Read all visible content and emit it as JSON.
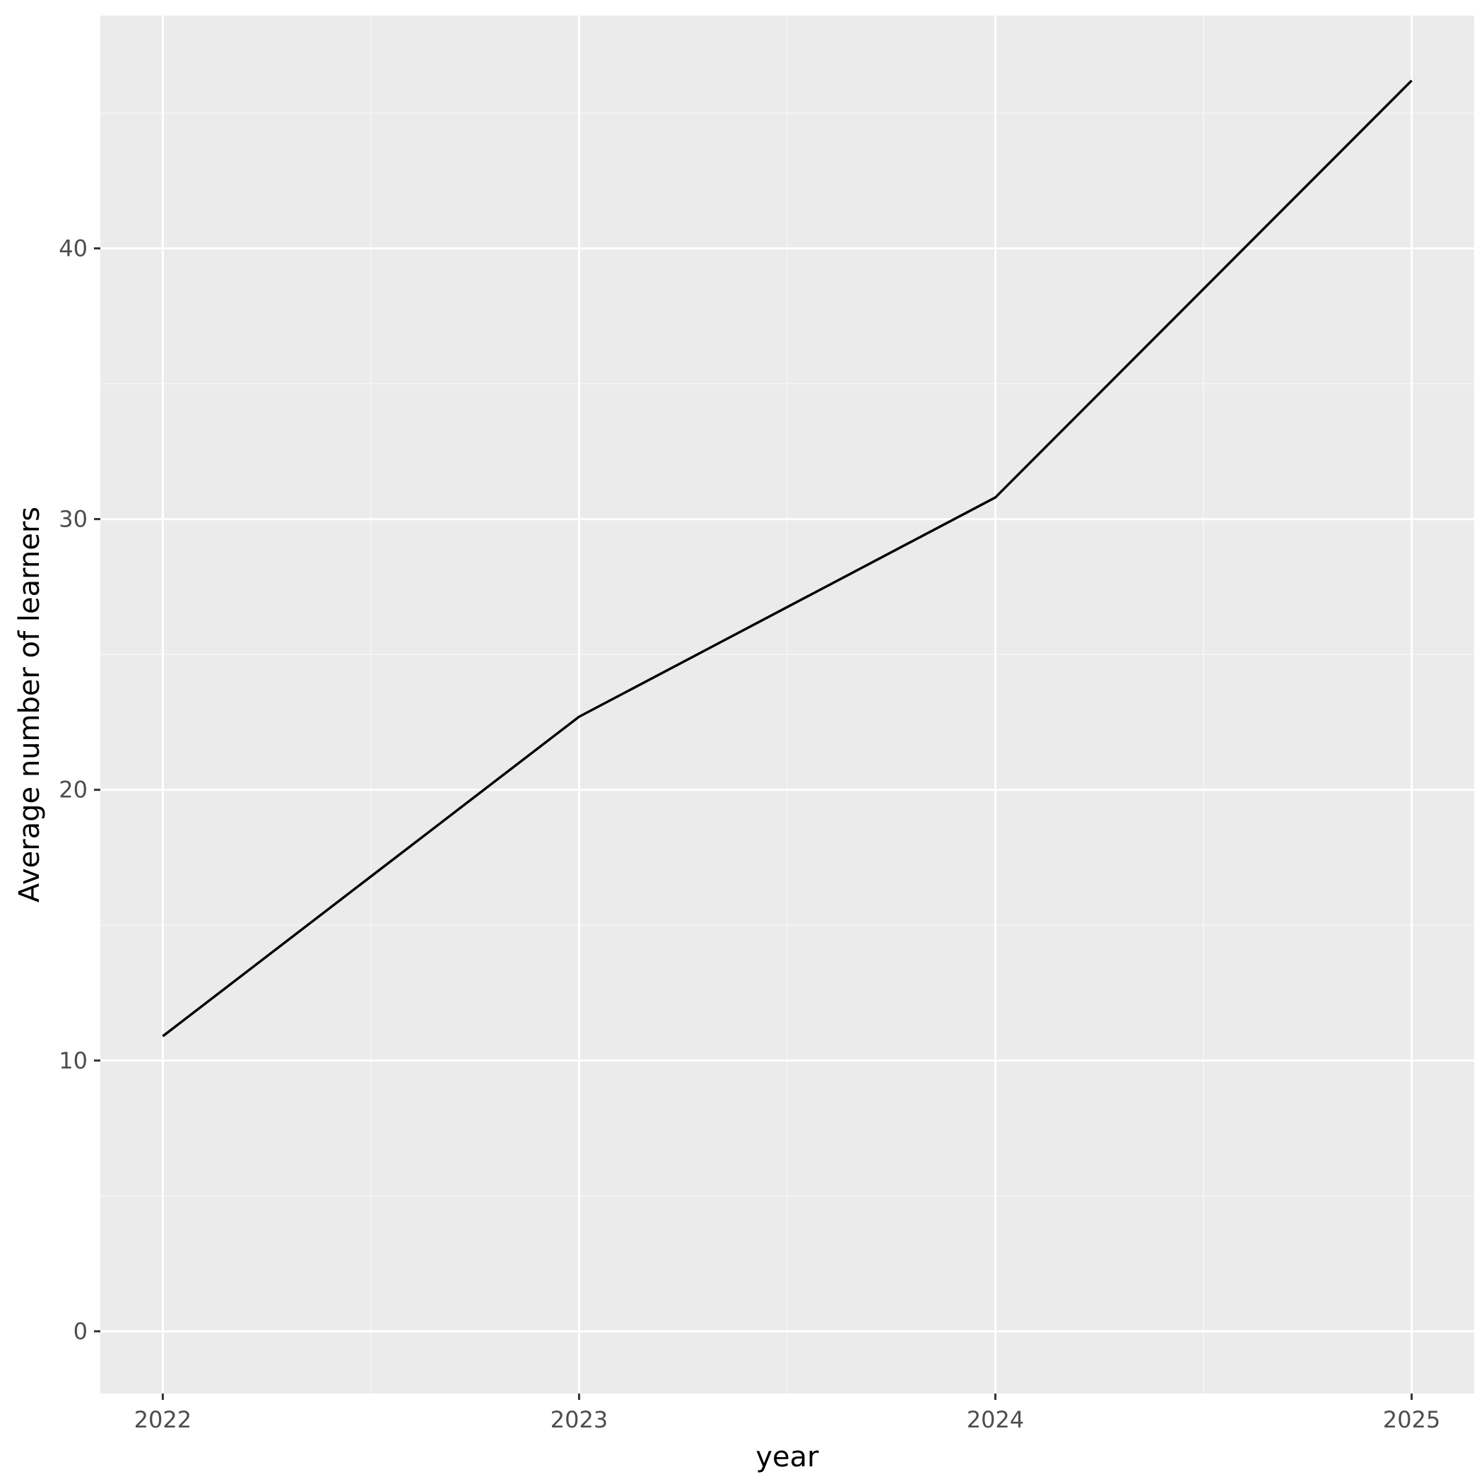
{
  "chart_data": {
    "type": "line",
    "title": "",
    "xlabel": "year",
    "ylabel": "Average number of learners",
    "x": [
      2022,
      2023,
      2024,
      2025
    ],
    "series": [
      {
        "values": [
          10.9,
          22.7,
          30.8,
          46.2
        ]
      }
    ],
    "x_ticks": [
      "2022",
      "2023",
      "2024",
      "2025"
    ],
    "y_ticks": [
      0,
      10,
      20,
      30,
      40
    ],
    "xlim": [
      2021.85,
      2025.15
    ],
    "ylim": [
      -2.3,
      48.6
    ],
    "grid": true,
    "legend": "none",
    "colors": {
      "panel": "#ebebeb",
      "grid_major": "#ffffff",
      "grid_minor": "#f5f5f5",
      "line": "#000000",
      "tick_text": "#4d4d4d",
      "axis_text": "#000000"
    }
  }
}
